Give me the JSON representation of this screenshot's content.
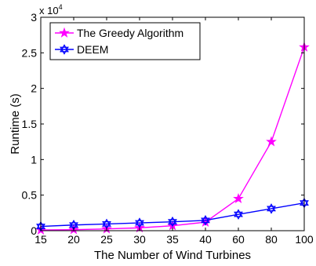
{
  "chart_data": {
    "type": "line",
    "title": "",
    "xlabel": "The Number of Wind Turbines",
    "ylabel": "Runtime (s)",
    "y_multiplier": "x 10",
    "y_multiplier_exponent": "4",
    "categories": [
      "15",
      "20",
      "25",
      "30",
      "35",
      "40",
      "60",
      "80",
      "100"
    ],
    "yticks": [
      "0",
      "0.5",
      "1",
      "1.5",
      "2",
      "2.5",
      "3"
    ],
    "ylim": [
      0,
      30000
    ],
    "grid": false,
    "legend_position": "top-left",
    "series": [
      {
        "name": "The Greedy Algorithm",
        "color": "#ff00ff",
        "marker": "star",
        "values": [
          100,
          150,
          250,
          400,
          700,
          1200,
          4500,
          12500,
          25800
        ]
      },
      {
        "name": "DEEM",
        "color": "#0000ff",
        "marker": "hexagram",
        "values": [
          600,
          800,
          950,
          1100,
          1250,
          1450,
          2300,
          3100,
          3900
        ]
      }
    ]
  }
}
